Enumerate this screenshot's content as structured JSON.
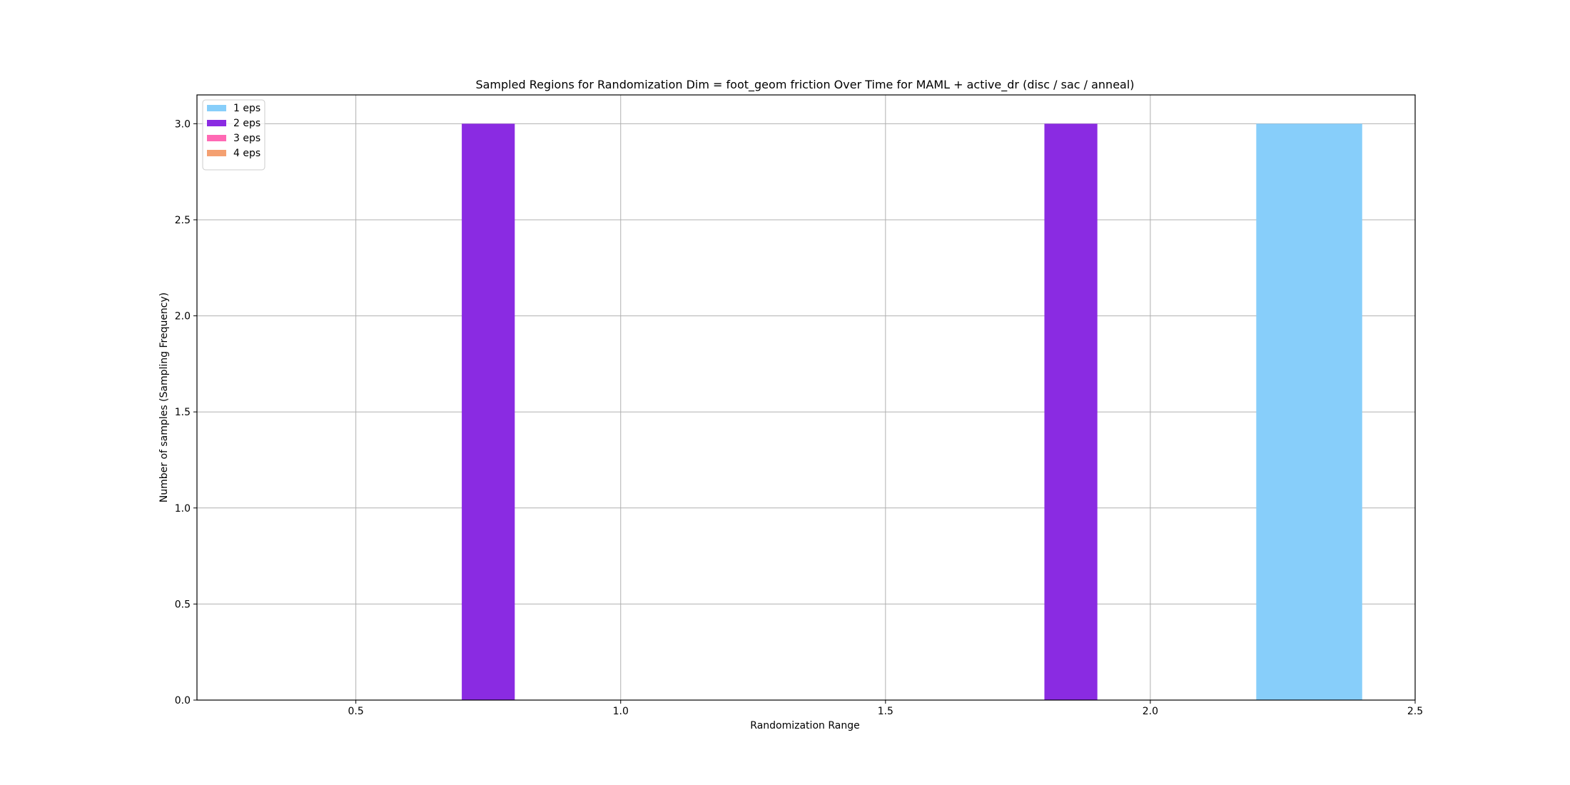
{
  "chart_data": {
    "type": "bar",
    "title": "Sampled Regions for Randomization Dim = foot_geom friction Over Time for MAML + active_dr (disc / sac / anneal)",
    "xlabel": "Randomization Range",
    "ylabel": "Number of samples (Sampling Frequency)",
    "xlim": [
      0.2,
      2.5
    ],
    "ylim": [
      0,
      3.15
    ],
    "xticks": [
      "0.5",
      "1.0",
      "1.5",
      "2.0",
      "2.5"
    ],
    "yticks": [
      "0.0",
      "0.5",
      "1.0",
      "1.5",
      "2.0",
      "2.5",
      "3.0"
    ],
    "grid": true,
    "legend_position": "top-left",
    "series": [
      {
        "name": "1 eps",
        "color": "#87cefa",
        "bars": [
          {
            "x0": 2.2,
            "x1": 2.4,
            "value": 3
          }
        ]
      },
      {
        "name": "2 eps",
        "color": "#8a2be2",
        "bars": [
          {
            "x0": 0.7,
            "x1": 0.8,
            "value": 3
          },
          {
            "x0": 1.8,
            "x1": 1.9,
            "value": 3
          }
        ]
      },
      {
        "name": "3 eps",
        "color": "#ff69b4",
        "bars": []
      },
      {
        "name": "4 eps",
        "color": "#f4a071",
        "bars": []
      }
    ]
  }
}
